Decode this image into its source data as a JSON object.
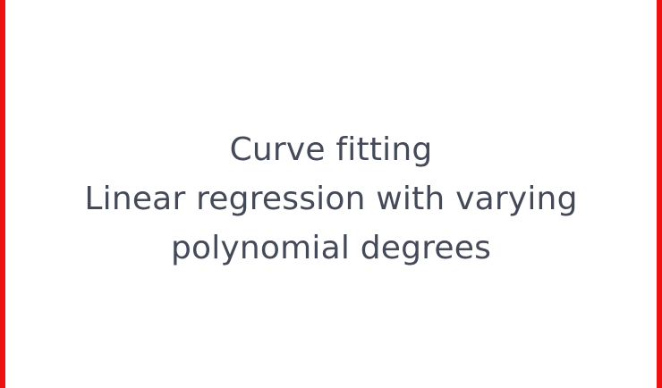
{
  "caption": {
    "line1": "Curve fitting",
    "line2": "Linear regression with varying",
    "line3": "polynomial degrees"
  },
  "colors": {
    "border": "#ee1111",
    "text": "#454a58",
    "background": "#ffffff"
  }
}
